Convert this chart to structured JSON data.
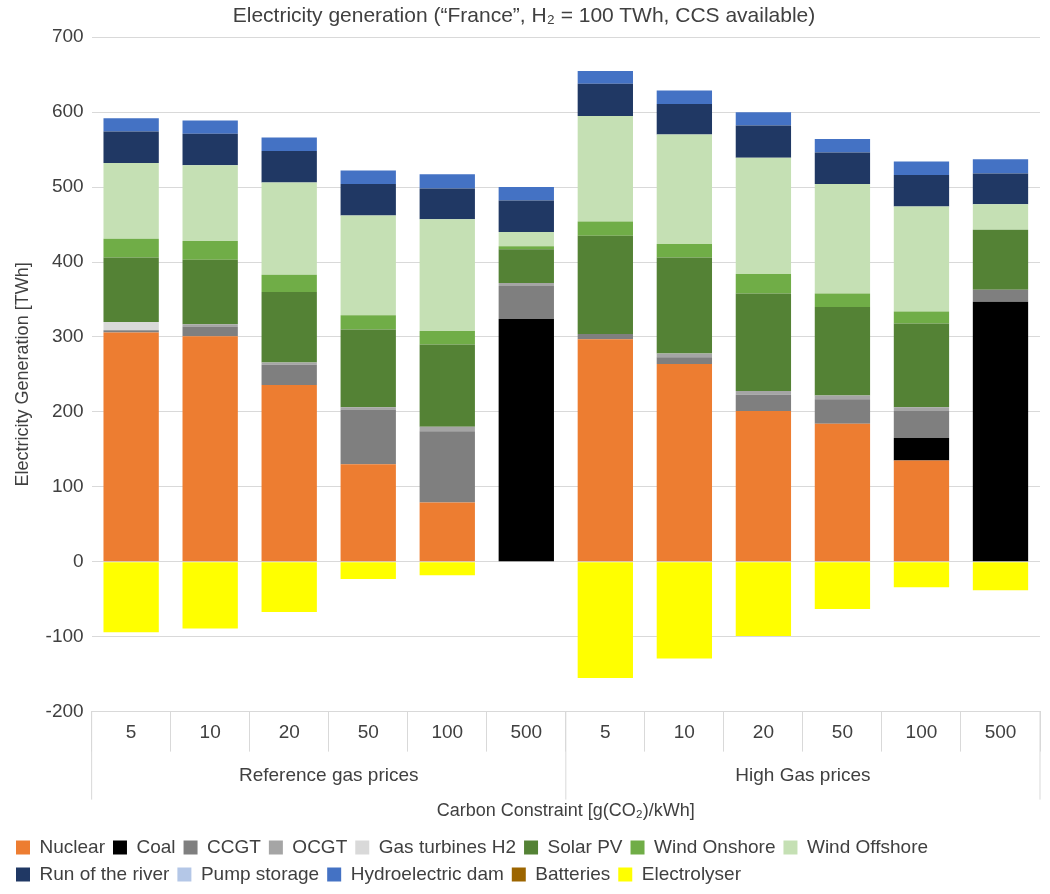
{
  "chart_data": {
    "type": "bar",
    "title": "Electricity generation (“France”, H₂ = 100 TWh, CCS available)",
    "ylabel": "Electricity Generation [TWh]",
    "xlabel": "Carbon Constraint [g(CO₂)/kWh]",
    "annotations": [
      "Reference gas prices",
      "High Gas prices"
    ],
    "categories": [
      "5",
      "10",
      "20",
      "50",
      "100",
      "500",
      "5",
      "10",
      "20",
      "50",
      "100",
      "500"
    ],
    "stacked": true,
    "ylim": [
      -200,
      700
    ],
    "yticks": [
      -200,
      -100,
      0,
      100,
      200,
      300,
      400,
      500,
      600,
      700
    ],
    "grid": "y",
    "legend": "bottom",
    "series": [
      {
        "name": "Nuclear",
        "color": "#ed7d31",
        "values": [
          306,
          301,
          236,
          130,
          79,
          0,
          297,
          264,
          201,
          184,
          135,
          0
        ]
      },
      {
        "name": "Coal",
        "color": "#000000",
        "values": [
          0,
          0,
          0,
          0,
          0,
          324,
          0,
          0,
          0,
          0,
          30,
          347
        ]
      },
      {
        "name": "CCGT",
        "color": "#7f7f7f",
        "values": [
          3,
          13,
          27,
          73,
          95,
          44,
          7,
          9,
          22,
          33,
          36,
          16
        ]
      },
      {
        "name": "OCGT",
        "color": "#a5a5a5",
        "values": [
          0,
          3,
          3,
          3,
          6,
          4,
          0,
          5,
          5,
          5,
          5,
          0
        ]
      },
      {
        "name": "Gas turbines H2",
        "color": "#d9d9d9",
        "values": [
          11,
          0,
          0,
          0,
          0,
          0,
          0,
          0,
          0,
          0,
          0,
          0
        ]
      },
      {
        "name": "Solar PV",
        "color": "#548235",
        "values": [
          86,
          86,
          94,
          104,
          110,
          45,
          131,
          128,
          130,
          118,
          112,
          80
        ]
      },
      {
        "name": "Wind Onshore",
        "color": "#70ad47",
        "values": [
          25,
          25,
          23,
          19,
          18,
          4,
          19,
          18,
          26,
          18,
          16,
          0
        ]
      },
      {
        "name": "Wind Offshore",
        "color": "#c5e0b4",
        "values": [
          101,
          101,
          123,
          133,
          149,
          19,
          141,
          146,
          155,
          146,
          140,
          34
        ]
      },
      {
        "name": "Run of the river",
        "color": "#203864",
        "values": [
          42,
          42,
          42,
          42,
          41,
          42,
          43,
          41,
          43,
          42,
          42,
          41
        ]
      },
      {
        "name": "Pump storage",
        "color": "#b4c7e7",
        "values": [
          0,
          0,
          0,
          0,
          0,
          0,
          0,
          0,
          0,
          0,
          0,
          0
        ]
      },
      {
        "name": "Hydroelectric dam",
        "color": "#4472c4",
        "values": [
          18,
          18,
          18,
          18,
          19,
          18,
          17,
          18,
          18,
          18,
          18,
          19
        ]
      },
      {
        "name": "Batteries",
        "color": "#9c6500",
        "values": [
          0,
          0,
          0,
          0,
          0,
          0,
          0,
          0,
          0,
          0,
          0,
          0
        ]
      },
      {
        "name": "Electrolyser",
        "color": "#ffff00",
        "values": [
          -94,
          -89,
          -67,
          -23,
          -18,
          0,
          -155,
          -129,
          -99,
          -63,
          -34,
          -38
        ]
      }
    ]
  }
}
